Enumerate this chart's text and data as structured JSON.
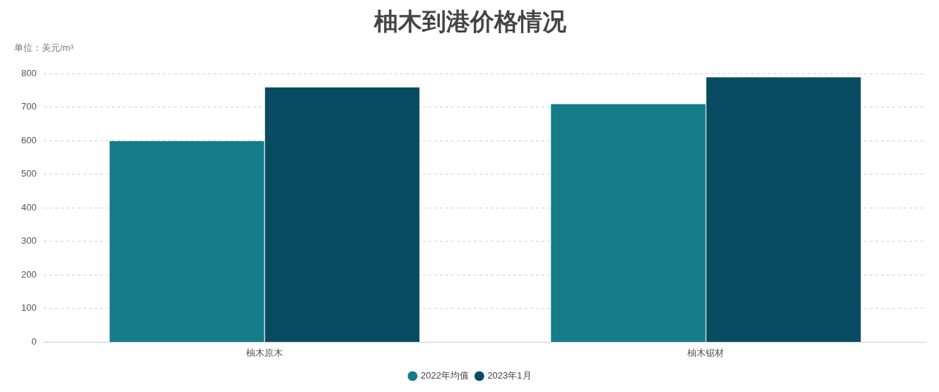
{
  "chart_data": {
    "type": "bar",
    "title": "柚木到港价格情况",
    "subtitle": "单位：美元/m³",
    "categories": [
      "柚木原木",
      "柚木锯材"
    ],
    "series": [
      {
        "name": "2022年均值",
        "color": "#147d89",
        "values": [
          600,
          710
        ]
      },
      {
        "name": "2023年1月",
        "color": "#094c62",
        "values": [
          760,
          790
        ]
      }
    ],
    "ylim": [
      0,
      800
    ],
    "yticks": [
      0,
      100,
      200,
      300,
      400,
      500,
      600,
      700,
      800
    ],
    "grid": "y",
    "legend": "bottom"
  }
}
